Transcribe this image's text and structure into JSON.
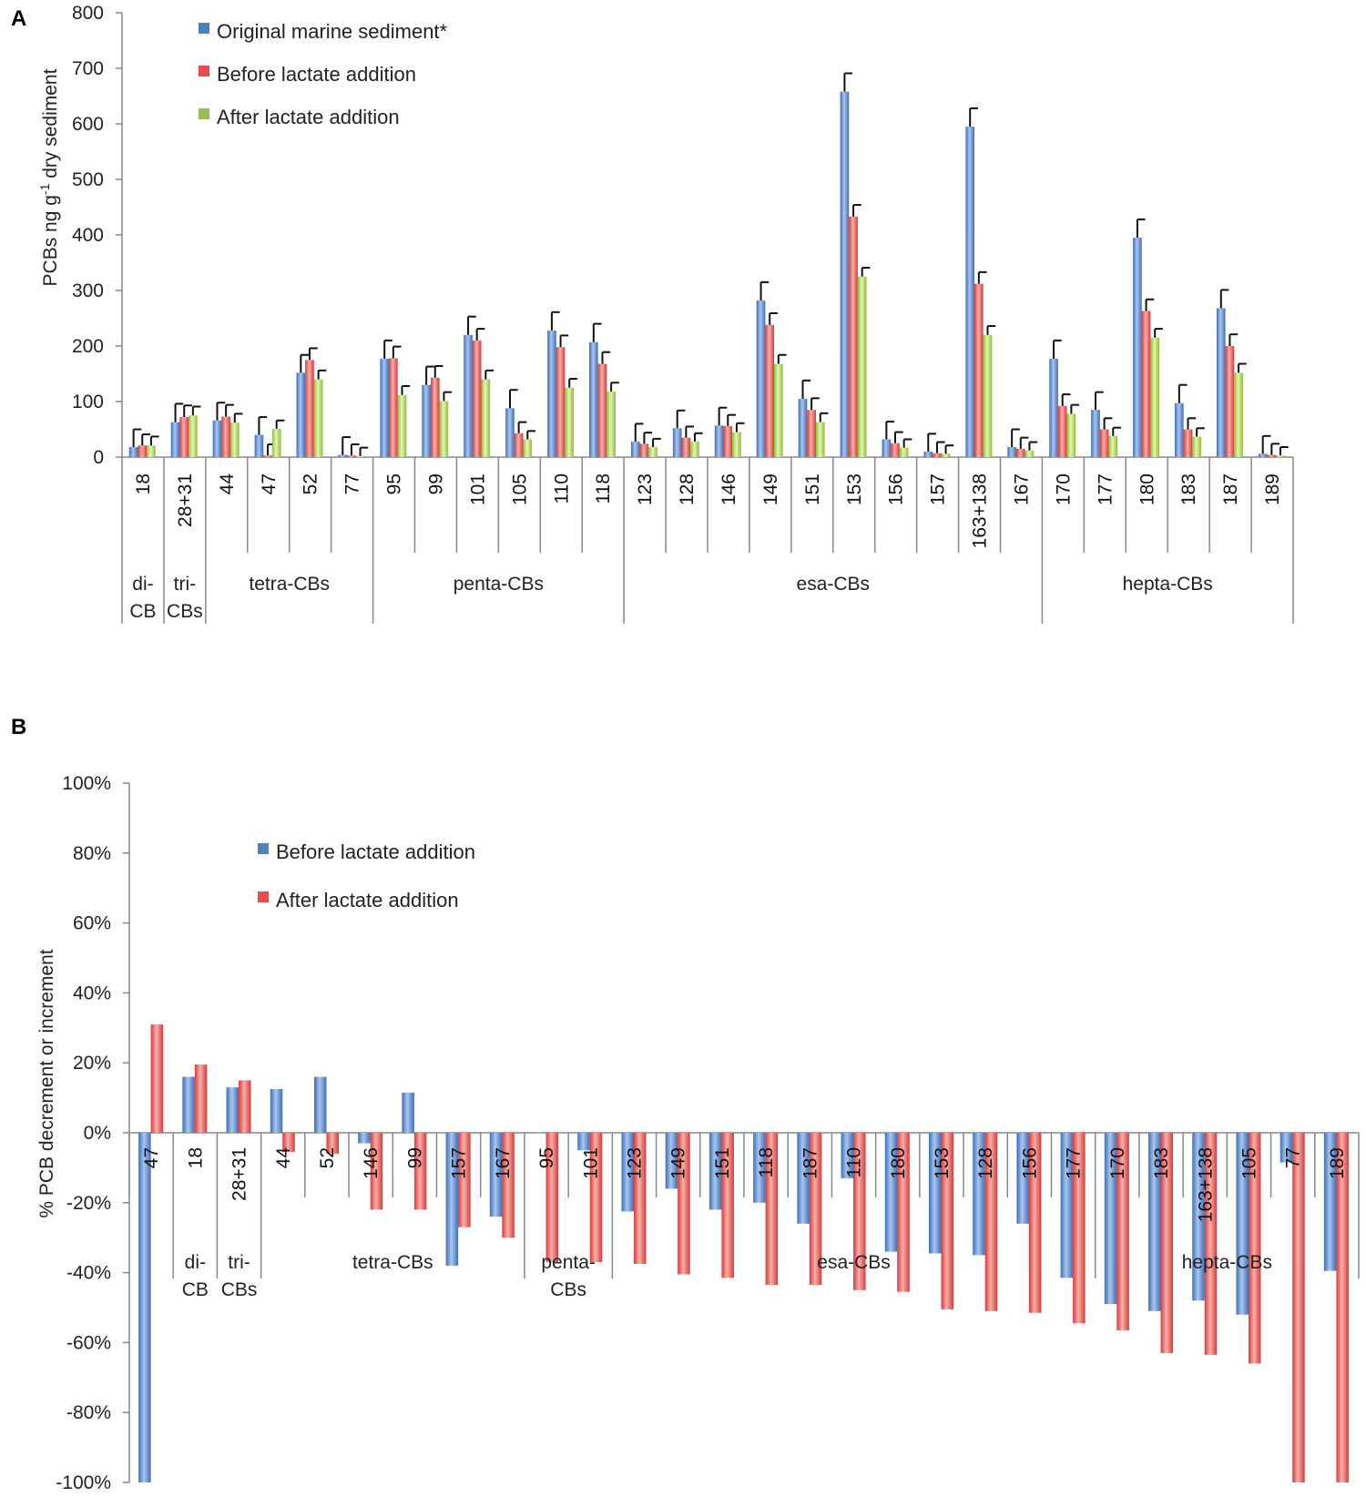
{
  "chart_data": [
    {
      "panel": "A",
      "type": "bar",
      "ylabel_main": "PCBs ng g",
      "ylabel_sup": "-1",
      "ylabel_tail": " dry sediment",
      "ylim": [
        0,
        800
      ],
      "yticks": [
        "0",
        "100",
        "200",
        "300",
        "400",
        "500",
        "600",
        "700",
        "800"
      ],
      "categories": [
        "18",
        "28+31",
        "44",
        "47",
        "52",
        "77",
        "95",
        "99",
        "101",
        "105",
        "110",
        "118",
        "123",
        "128",
        "146",
        "149",
        "151",
        "153",
        "156",
        "157",
        "163+138",
        "167",
        "170",
        "177",
        "180",
        "183",
        "187",
        "189"
      ],
      "series": [
        {
          "name": "Original marine sediment*",
          "color": "#4f81bd",
          "values": [
            18,
            63,
            66,
            40,
            152,
            4,
            177,
            130,
            220,
            88,
            228,
            207,
            28,
            52,
            57,
            282,
            105,
            658,
            32,
            10,
            595,
            18,
            177,
            85,
            395,
            97,
            268,
            6
          ],
          "errors": [
            32,
            33,
            32,
            32,
            32,
            32,
            33,
            33,
            33,
            33,
            33,
            33,
            32,
            32,
            32,
            33,
            33,
            33,
            32,
            32,
            33,
            32,
            33,
            32,
            33,
            33,
            33,
            32
          ]
        },
        {
          "name": "Before lactate addition",
          "color": "#e84c4c",
          "values": [
            21,
            72,
            73,
            3,
            175,
            3,
            178,
            143,
            210,
            43,
            198,
            168,
            24,
            35,
            56,
            238,
            85,
            433,
            25,
            7,
            312,
            15,
            92,
            50,
            263,
            50,
            200,
            4
          ],
          "errors": [
            20,
            21,
            21,
            20,
            21,
            20,
            21,
            21,
            21,
            20,
            21,
            21,
            20,
            20,
            20,
            21,
            21,
            21,
            20,
            20,
            21,
            20,
            21,
            20,
            21,
            20,
            21,
            20
          ]
        },
        {
          "name": "After lactate addition",
          "color": "#9bbb59",
          "values": [
            21,
            75,
            62,
            51,
            140,
            2,
            112,
            101,
            140,
            32,
            125,
            118,
            18,
            28,
            45,
            168,
            63,
            325,
            17,
            6,
            220,
            12,
            78,
            38,
            215,
            37,
            152,
            3
          ],
          "errors": [
            16,
            16,
            16,
            15,
            16,
            15,
            16,
            16,
            16,
            15,
            16,
            16,
            15,
            15,
            16,
            16,
            16,
            16,
            15,
            15,
            16,
            15,
            16,
            15,
            16,
            15,
            16,
            15
          ]
        }
      ],
      "groups": [
        {
          "lines": [
            "di-",
            "CB"
          ],
          "span": [
            0,
            0
          ]
        },
        {
          "lines": [
            "tri-",
            "CBs"
          ],
          "span": [
            1,
            1
          ]
        },
        {
          "lines": [
            "tetra-CBs"
          ],
          "span": [
            2,
            5
          ]
        },
        {
          "lines": [
            "penta-CBs"
          ],
          "span": [
            6,
            11
          ]
        },
        {
          "lines": [
            "esa-CBs"
          ],
          "span": [
            12,
            21
          ]
        },
        {
          "lines": [
            "hepta-CBs"
          ],
          "span": [
            22,
            27
          ]
        }
      ]
    },
    {
      "panel": "B",
      "type": "bar",
      "ylabel": "% PCB decrement or increment",
      "ylim": [
        -100,
        100
      ],
      "yticks": [
        "-100%",
        "-80%",
        "-60%",
        "-40%",
        "-20%",
        "0%",
        "20%",
        "40%",
        "60%",
        "80%",
        "100%"
      ],
      "categories": [
        "47",
        "18",
        "28+31",
        "44",
        "52",
        "146",
        "99",
        "157",
        "167",
        "95",
        "101",
        "123",
        "149",
        "151",
        "118",
        "187",
        "110",
        "180",
        "153",
        "128",
        "156",
        "177",
        "170",
        "183",
        "163+138",
        "105",
        "77",
        "189"
      ],
      "series": [
        {
          "name": "Before lactate addition",
          "color": "#4f81bd",
          "values": [
            -100,
            16,
            13,
            12.5,
            16,
            -3,
            11.5,
            -38,
            -24,
            0,
            -5,
            -22.5,
            -16,
            -22,
            -20,
            -26,
            -13,
            -34,
            -34.5,
            -35,
            -26,
            -41.5,
            -49,
            -51,
            -48,
            -52,
            -8.5,
            -39.5
          ]
        },
        {
          "name": "After lactate addition",
          "color": "#e84c4c",
          "values": [
            31,
            19.5,
            15,
            -5.5,
            -6,
            -22,
            -22,
            -27,
            -30,
            -37,
            -37,
            -37.5,
            -40.5,
            -41.5,
            -43.5,
            -43.5,
            -45,
            -45.5,
            -50.5,
            -51,
            -51.5,
            -54.5,
            -56.5,
            -63,
            -63.5,
            -66,
            -100,
            -100
          ]
        }
      ],
      "groups": [
        {
          "lines": [
            "di-",
            "CB"
          ],
          "span": [
            1,
            1
          ]
        },
        {
          "lines": [
            "tri-",
            "CBs"
          ],
          "span": [
            2,
            2
          ]
        },
        {
          "lines": [
            "tetra-CBs"
          ],
          "span": [
            3,
            8
          ]
        },
        {
          "lines": [
            "penta-",
            "CBs"
          ],
          "span": [
            9,
            10
          ]
        },
        {
          "lines": [
            "esa-CBs"
          ],
          "span": [
            11,
            21
          ]
        },
        {
          "lines": [
            "hepta-CBs"
          ],
          "span": [
            22,
            27
          ]
        }
      ]
    }
  ]
}
